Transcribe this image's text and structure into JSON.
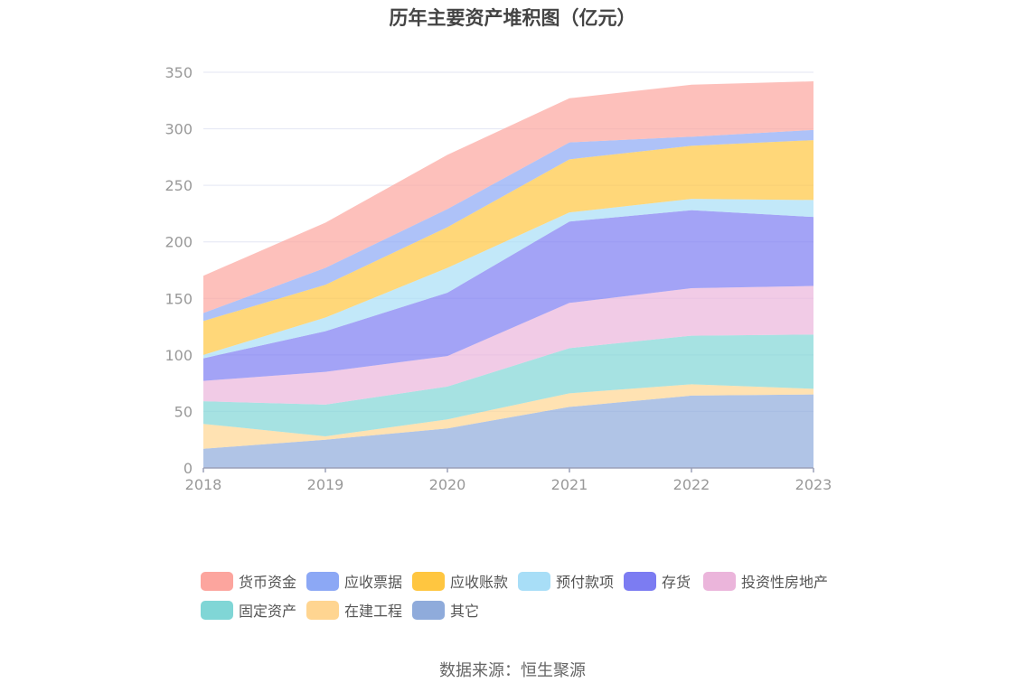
{
  "chart_data": {
    "type": "area",
    "stacked": true,
    "title": "历年主要资产堆积图（亿元）",
    "source": "数据来源：恒生聚源",
    "x": [
      "2018",
      "2019",
      "2020",
      "2021",
      "2022",
      "2023"
    ],
    "ylim": [
      0,
      350
    ],
    "yticks": [
      "0",
      "50",
      "100",
      "150",
      "200",
      "250",
      "300",
      "350"
    ],
    "grid": true,
    "legend_position": "bottom",
    "series": [
      {
        "name": "其它",
        "color": "#8fabdb",
        "values": [
          17,
          25,
          35,
          54,
          64,
          65
        ]
      },
      {
        "name": "在建工程",
        "color": "#ffd591",
        "values": [
          22,
          3,
          8,
          12,
          10,
          5
        ]
      },
      {
        "name": "固定资产",
        "color": "#80d6d6",
        "values": [
          20,
          28,
          29,
          40,
          43,
          48
        ]
      },
      {
        "name": "投资性房地产",
        "color": "#ebb5db",
        "values": [
          18,
          29,
          27,
          40,
          42,
          43
        ]
      },
      {
        "name": "存货",
        "color": "#7c7cf2",
        "values": [
          20,
          36,
          56,
          72,
          69,
          61
        ]
      },
      {
        "name": "预付款项",
        "color": "#a8def7",
        "values": [
          3,
          12,
          22,
          8,
          10,
          15
        ]
      },
      {
        "name": "应收账款",
        "color": "#ffc640",
        "values": [
          30,
          29,
          36,
          47,
          47,
          53
        ]
      },
      {
        "name": "应收票据",
        "color": "#8ca8f5",
        "values": [
          7,
          15,
          16,
          15,
          8,
          9
        ]
      },
      {
        "name": "货币资金",
        "color": "#fca59e",
        "values": [
          33,
          40,
          48,
          39,
          46,
          43
        ]
      }
    ],
    "legend_order": [
      "货币资金",
      "应收票据",
      "应收账款",
      "预付款项",
      "存货",
      "投资性房地产",
      "固定资产",
      "在建工程",
      "其它"
    ]
  }
}
